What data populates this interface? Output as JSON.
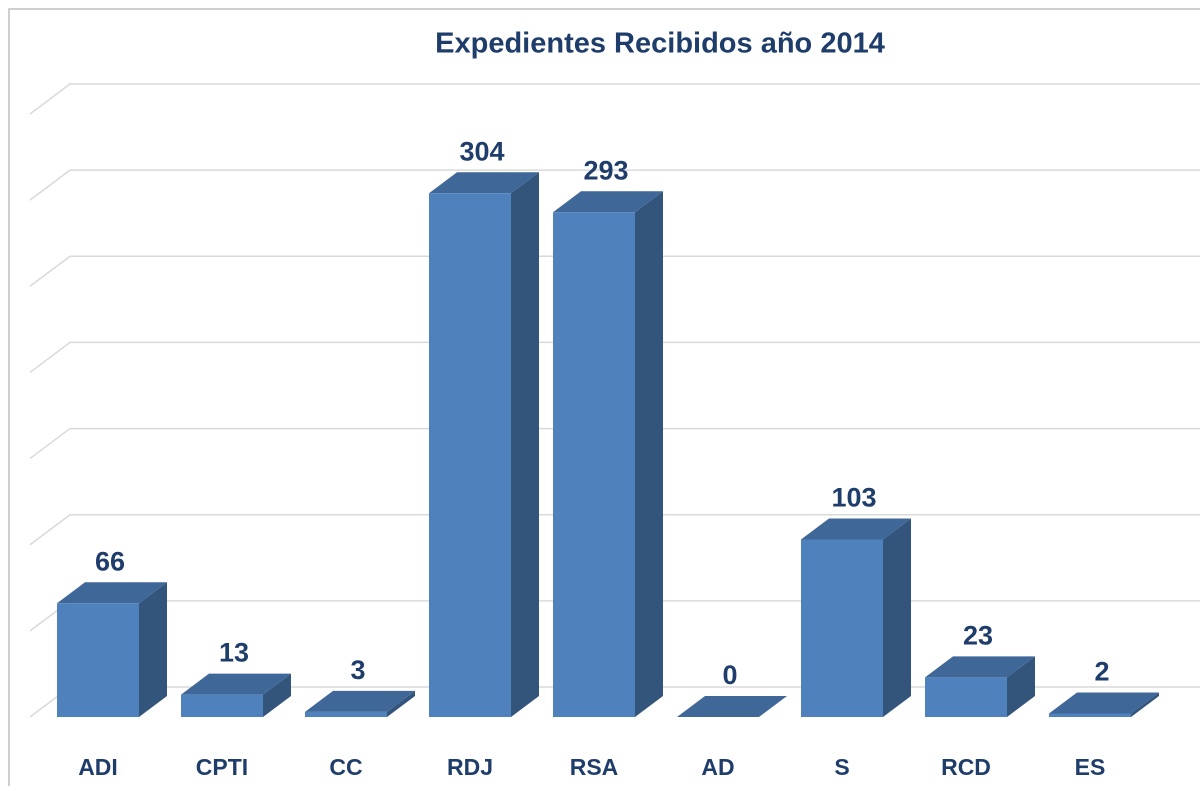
{
  "chart_data": {
    "type": "bar3d",
    "title": "Expedientes Recibidos año 2014",
    "categories": [
      "ADI",
      "CPTI",
      "CC",
      "RDJ",
      "RSA",
      "AD",
      "S",
      "RCD",
      "ES"
    ],
    "values": [
      66,
      13,
      3,
      304,
      293,
      0,
      103,
      23,
      2
    ],
    "color": "#4f81bd",
    "ylim": [
      0,
      350
    ],
    "yticks": [
      0,
      50,
      100,
      150,
      200,
      250,
      300,
      350
    ],
    "grid": true
  }
}
